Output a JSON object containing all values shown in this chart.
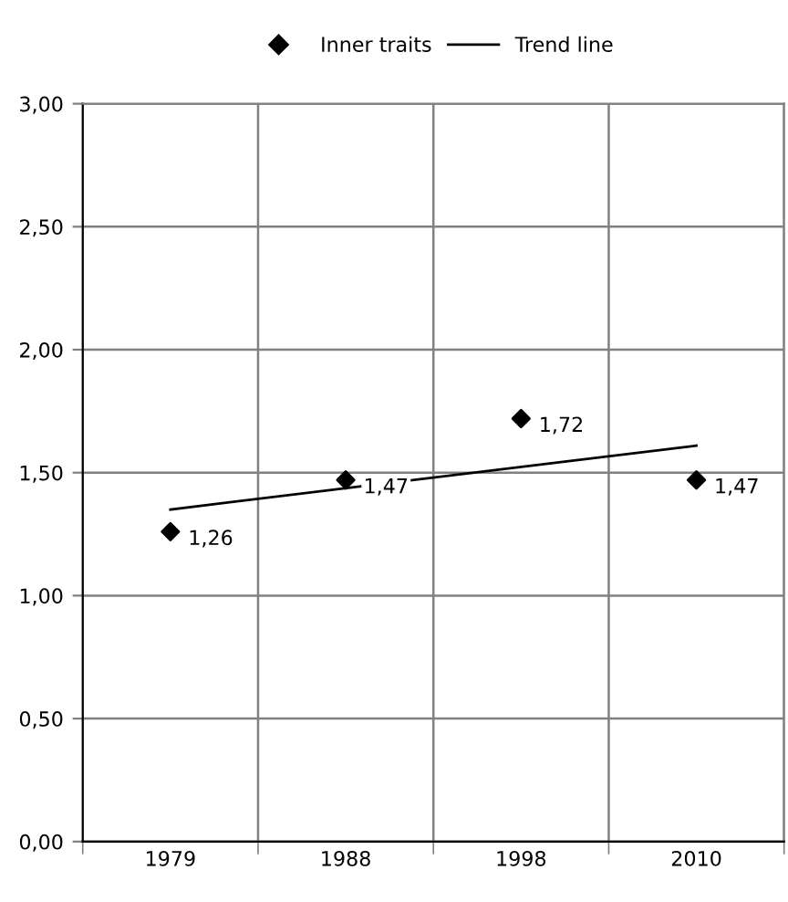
{
  "chart_data": {
    "type": "scatter",
    "categories": [
      "1979",
      "1988",
      "1998",
      "2010"
    ],
    "series": [
      {
        "name": "Inner traits",
        "color": "#000000",
        "marker": "diamond",
        "values": [
          1.26,
          1.47,
          1.72,
          1.47
        ],
        "value_labels": [
          "1,26",
          "1,47",
          "1,72",
          "1,47"
        ]
      },
      {
        "name": "Trend line",
        "type": "line",
        "color": "#000000",
        "line_style": "solid",
        "values": [
          1.35,
          null,
          null,
          1.61
        ]
      }
    ],
    "ylim": [
      0,
      3
    ],
    "yticks": [
      {
        "value": 0,
        "label": "0,00"
      },
      {
        "value": 0.5,
        "label": "0,50"
      },
      {
        "value": 1,
        "label": "1,00"
      },
      {
        "value": 1.5,
        "label": "1,50"
      },
      {
        "value": 2,
        "label": "2,00"
      },
      {
        "value": 2.5,
        "label": "2,50"
      },
      {
        "value": 3,
        "label": "3,00"
      }
    ],
    "grid": true,
    "legend": "top"
  }
}
